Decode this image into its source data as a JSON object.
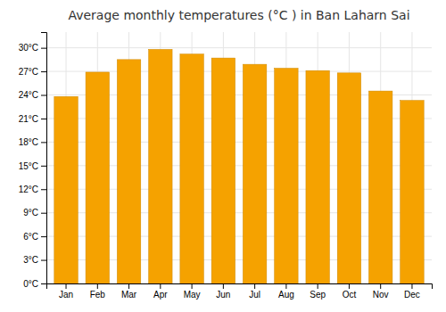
{
  "chart_data": {
    "type": "bar",
    "title": "Average monthly temperatures (°C ) in Ban Laharn Sai",
    "categories": [
      "Jan",
      "Feb",
      "Mar",
      "Apr",
      "May",
      "Jun",
      "Jul",
      "Aug",
      "Sep",
      "Oct",
      "Nov",
      "Dec"
    ],
    "values": [
      23.8,
      26.9,
      28.5,
      29.8,
      29.2,
      28.7,
      27.9,
      27.4,
      27.1,
      26.8,
      24.5,
      23.3
    ],
    "color": "#F5A200",
    "ylim": [
      0,
      32
    ],
    "yticks": [
      {
        "value": 0,
        "label": "0°C"
      },
      {
        "value": 3,
        "label": "3°C"
      },
      {
        "value": 6,
        "label": "6°C"
      },
      {
        "value": 9,
        "label": "9°C"
      },
      {
        "value": 12,
        "label": "12°C"
      },
      {
        "value": 15,
        "label": "15°C"
      },
      {
        "value": 18,
        "label": "18°C"
      },
      {
        "value": 21,
        "label": "21°C"
      },
      {
        "value": 24,
        "label": "24°C"
      },
      {
        "value": 27,
        "label": "27°C"
      },
      {
        "value": 30,
        "label": "30°C"
      }
    ],
    "grid": true
  }
}
